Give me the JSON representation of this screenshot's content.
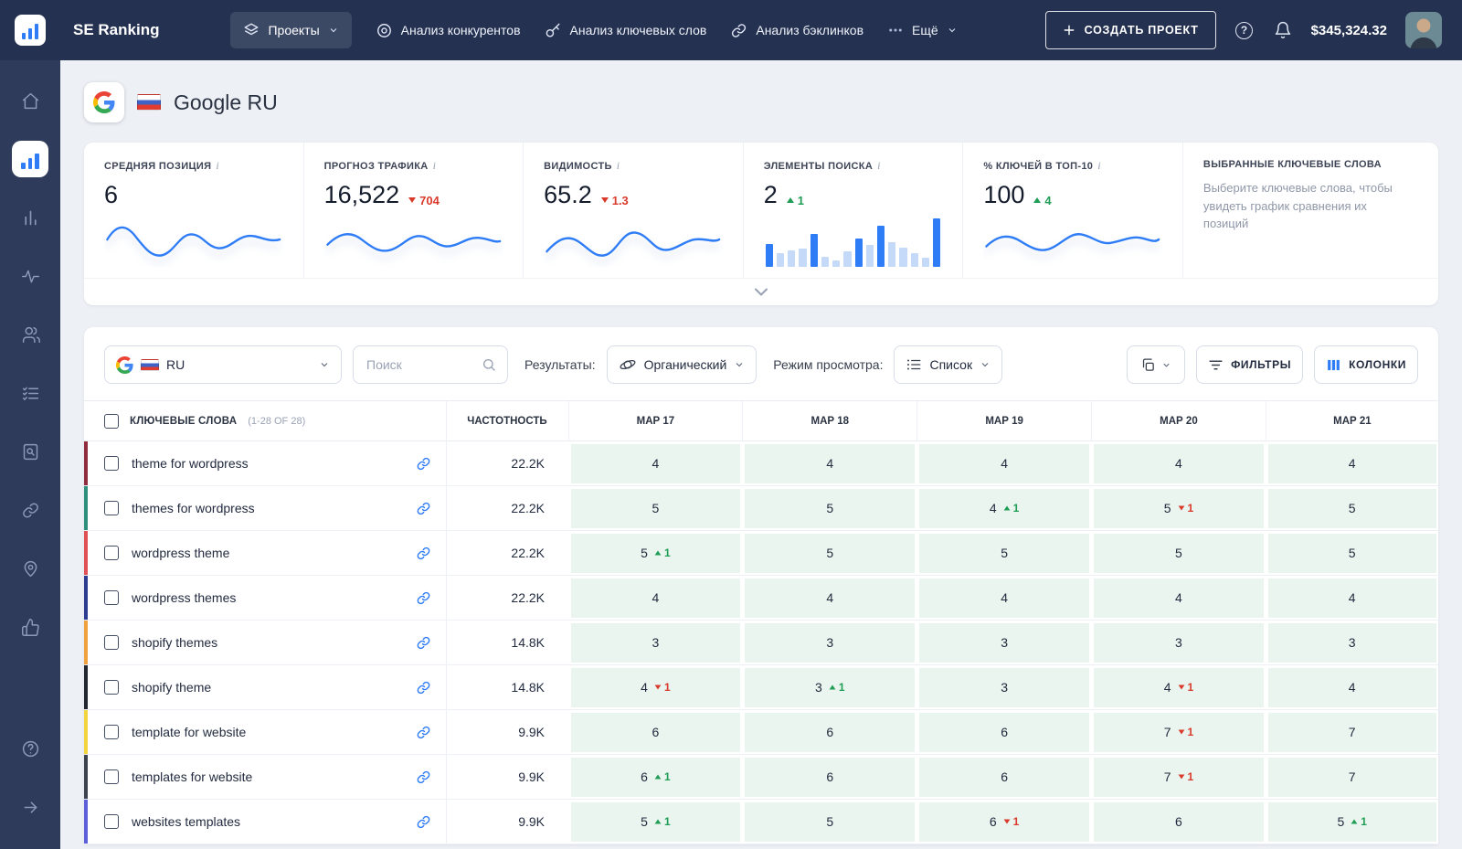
{
  "topnav": {
    "brand": "SE Ranking",
    "projects": "Проекты",
    "nav": [
      {
        "label": "Анализ конкурентов"
      },
      {
        "label": "Анализ ключевых слов"
      },
      {
        "label": "Анализ бэклинков"
      }
    ],
    "more": "Ещё",
    "create_project": "СОЗДАТЬ ПРОЕКТ",
    "balance": "$345,324.32"
  },
  "page": {
    "title": "Google RU"
  },
  "stats": [
    {
      "key": "average-position",
      "label": "СРЕДНЯЯ ПОЗИЦИЯ",
      "value": "6",
      "viz": "line1"
    },
    {
      "key": "traffic-forecast",
      "label": "ПРОГНОЗ ТРАФИКА",
      "value": "16,522",
      "delta": "704",
      "direction": "down",
      "viz": "line2"
    },
    {
      "key": "visibility",
      "label": "ВИДИМОСТЬ",
      "value": "65.2",
      "delta": "1.3",
      "direction": "down",
      "viz": "line3"
    },
    {
      "key": "serp-features",
      "label": "ЭЛЕМЕНТЫ ПОИСКА",
      "value": "2",
      "delta": "1",
      "direction": "up",
      "viz": "bars",
      "bars": [
        [
          0.45,
          1
        ],
        [
          0.27,
          0
        ],
        [
          0.32,
          0
        ],
        [
          0.36,
          0
        ],
        [
          0.64,
          1
        ],
        [
          0.2,
          0
        ],
        [
          0.12,
          0
        ],
        [
          0.3,
          0
        ],
        [
          0.55,
          1
        ],
        [
          0.42,
          0
        ],
        [
          0.8,
          1
        ],
        [
          0.48,
          0
        ],
        [
          0.38,
          0
        ],
        [
          0.27,
          0
        ],
        [
          0.18,
          0
        ],
        [
          0.95,
          1
        ]
      ]
    },
    {
      "key": "keywords-in-top10",
      "label": "% КЛЮЧЕЙ В ТОП-10",
      "value": "100",
      "delta": "4",
      "direction": "up",
      "viz": "line4"
    }
  ],
  "selected_keywords": {
    "title": "ВЫБРАННЫЕ КЛЮЧЕВЫЕ СЛОВА",
    "description": "Выберите ключевые слова, чтобы увидеть график сравнения их позиций"
  },
  "toolbar": {
    "region": "RU",
    "search_placeholder": "Поиск",
    "results_label": "Результаты:",
    "results_value": "Органический",
    "view_label": "Режим просмотра:",
    "view_value": "Список",
    "filters": "ФИЛЬТРЫ",
    "columns": "КОЛОНКИ"
  },
  "table": {
    "keywords_header": "КЛЮЧЕВЫЕ СЛОВА",
    "keywords_count": "(1-28 OF 28)",
    "volume_header": "ЧАСТОТНОСТЬ",
    "dates": [
      "МАР 17",
      "МАР 18",
      "МАР 19",
      "МАР 20",
      "МАР 21"
    ],
    "rows": [
      {
        "keyword": "theme for wordpress",
        "volume": "22.2K",
        "color": "#8f2d3f",
        "cells": [
          {
            "v": "4"
          },
          {
            "v": "4"
          },
          {
            "v": "4"
          },
          {
            "v": "4"
          },
          {
            "v": "4"
          }
        ]
      },
      {
        "keyword": "themes for wordpress",
        "volume": "22.2K",
        "color": "#2f8f7d",
        "cells": [
          {
            "v": "5"
          },
          {
            "v": "5"
          },
          {
            "v": "4",
            "d": "1",
            "dir": "up"
          },
          {
            "v": "5",
            "d": "1",
            "dir": "down"
          },
          {
            "v": "5"
          }
        ]
      },
      {
        "keyword": "wordpress theme",
        "volume": "22.2K",
        "color": "#e05156",
        "cells": [
          {
            "v": "5",
            "d": "1",
            "dir": "up"
          },
          {
            "v": "5"
          },
          {
            "v": "5"
          },
          {
            "v": "5"
          },
          {
            "v": "5"
          }
        ]
      },
      {
        "keyword": "wordpress themes",
        "volume": "22.2K",
        "color": "#2c3c91",
        "cells": [
          {
            "v": "4"
          },
          {
            "v": "4"
          },
          {
            "v": "4"
          },
          {
            "v": "4"
          },
          {
            "v": "4"
          }
        ]
      },
      {
        "keyword": "shopify themes",
        "volume": "14.8K",
        "color": "#efa23d",
        "cells": [
          {
            "v": "3"
          },
          {
            "v": "3"
          },
          {
            "v": "3"
          },
          {
            "v": "3"
          },
          {
            "v": "3"
          }
        ]
      },
      {
        "keyword": "shopify theme",
        "volume": "14.8K",
        "color": "#23272f",
        "cells": [
          {
            "v": "4",
            "d": "1",
            "dir": "down"
          },
          {
            "v": "3",
            "d": "1",
            "dir": "up"
          },
          {
            "v": "3"
          },
          {
            "v": "4",
            "d": "1",
            "dir": "down"
          },
          {
            "v": "4"
          }
        ]
      },
      {
        "keyword": "template for website",
        "volume": "9.9K",
        "color": "#f2d440",
        "cells": [
          {
            "v": "6"
          },
          {
            "v": "6"
          },
          {
            "v": "6"
          },
          {
            "v": "7",
            "d": "1",
            "dir": "down"
          },
          {
            "v": "7"
          }
        ]
      },
      {
        "keyword": "templates for website",
        "volume": "9.9K",
        "color": "#3c434e",
        "cells": [
          {
            "v": "6",
            "d": "1",
            "dir": "up"
          },
          {
            "v": "6"
          },
          {
            "v": "6"
          },
          {
            "v": "7",
            "d": "1",
            "dir": "down"
          },
          {
            "v": "7"
          }
        ]
      },
      {
        "keyword": "websites templates",
        "volume": "9.9K",
        "color": "#5d5fd8",
        "cells": [
          {
            "v": "5",
            "d": "1",
            "dir": "up"
          },
          {
            "v": "5"
          },
          {
            "v": "6",
            "d": "1",
            "dir": "down"
          },
          {
            "v": "6"
          },
          {
            "v": "5",
            "d": "1",
            "dir": "up"
          }
        ]
      }
    ]
  }
}
